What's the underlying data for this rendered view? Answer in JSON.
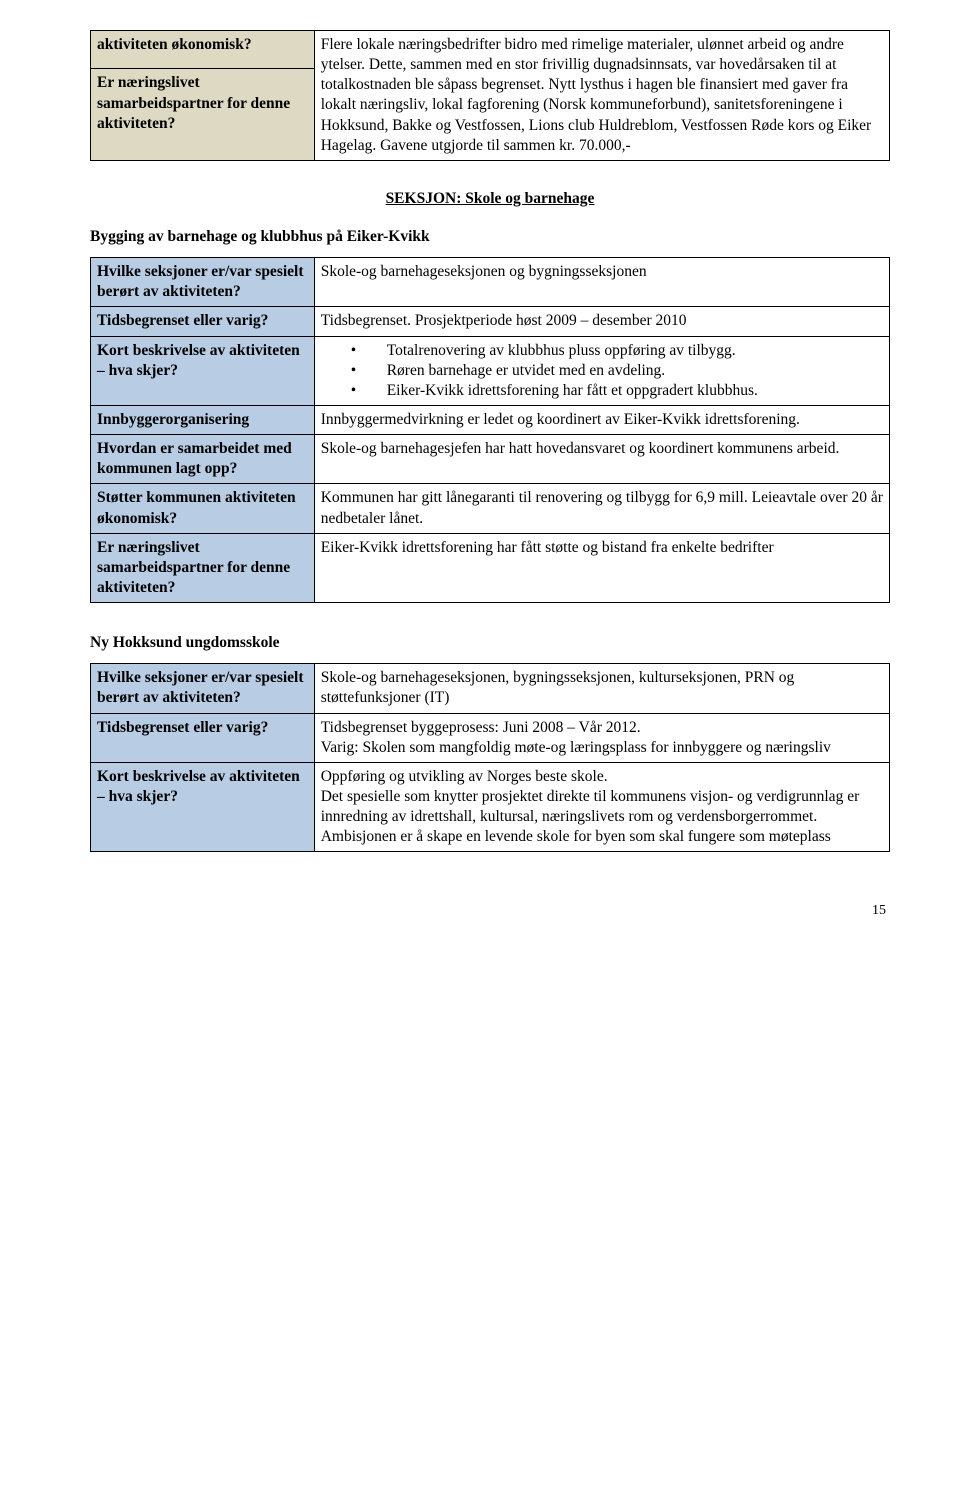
{
  "table1": {
    "row1": {
      "label": "aktiviteten økonomisk?",
      "value": ""
    },
    "row2": {
      "label": "Er næringslivet samarbeidspartner for denne aktiviteten?",
      "value": "Flere lokale næringsbedrifter bidro med rimelige materialer, ulønnet arbeid og andre ytelser. Dette, sammen med en stor frivillig dugnadsinnsats, var hovedårsaken til at totalkostnaden ble såpass begrenset. Nytt lysthus i hagen ble finansiert med gaver fra lokalt næringsliv, lokal fagforening (Norsk kommuneforbund), sanitetsforeningene i Hokksund, Bakke og Vestfossen, Lions club Huldreblom, Vestfossen Røde kors og Eiker Hagelag. Gavene utgjorde til sammen kr. 70.000,-"
    }
  },
  "section_heading": "SEKSJON: Skole og barnehage",
  "project1": {
    "title": "Bygging av barnehage og klubbhus på Eiker-Kvikk",
    "rows": {
      "r1": {
        "label": "Hvilke seksjoner er/var spesielt berørt av aktiviteten?",
        "value": "Skole-og barnehageseksjonen og bygningsseksjonen"
      },
      "r2": {
        "label": "Tidsbegrenset eller varig?",
        "value": "Tidsbegrenset. Prosjektperiode høst 2009 – desember 2010"
      },
      "r3": {
        "label": "Kort beskrivelse av aktiviteten – hva skjer?",
        "bullets": [
          "Totalrenovering av klubbhus pluss oppføring av tilbygg.",
          "Røren barnehage er utvidet med en avdeling.",
          "Eiker-Kvikk idrettsforening har fått et oppgradert klubbhus."
        ]
      },
      "r4": {
        "label": "Innbyggerorganisering",
        "value": "Innbyggermedvirkning er ledet og koordinert av Eiker-Kvikk idrettsforening."
      },
      "r5": {
        "label": "Hvordan er samarbeidet med kommunen lagt opp?",
        "value": "Skole-og barnehagesjefen har hatt hovedansvaret og koordinert kommunens arbeid."
      },
      "r6": {
        "label": "Støtter kommunen aktiviteten økonomisk?",
        "value": "Kommunen har gitt lånegaranti til renovering og tilbygg for 6,9 mill. Leieavtale over 20 år nedbetaler lånet."
      },
      "r7": {
        "label": "Er næringslivet samarbeidspartner for denne aktiviteten?",
        "value": "Eiker-Kvikk idrettsforening har fått støtte og bistand fra enkelte bedrifter"
      }
    }
  },
  "project2": {
    "title": "Ny Hokksund ungdomsskole",
    "rows": {
      "r1": {
        "label": "Hvilke seksjoner er/var spesielt berørt av aktiviteten?",
        "value": "Skole-og barnehageseksjonen, bygningsseksjonen, kulturseksjonen, PRN og støttefunksjoner (IT)"
      },
      "r2": {
        "label": "Tidsbegrenset eller varig?",
        "value": "Tidsbegrenset byggeprosess: Juni 2008 – Vår 2012.\nVarig: Skolen som mangfoldig møte-og læringsplass for innbyggere og næringsliv"
      },
      "r3": {
        "label": "Kort beskrivelse av aktiviteten – hva skjer?",
        "value": "Oppføring og utvikling av Norges beste skole.\nDet spesielle som knytter prosjektet direkte til kommunens visjon- og verdigrunnlag er innredning av idrettshall, kultursal, næringslivets rom og verdensborgerrommet. Ambisjonen er å skape en levende skole for byen som skal fungere som møteplass"
      }
    }
  },
  "page_number": "15"
}
